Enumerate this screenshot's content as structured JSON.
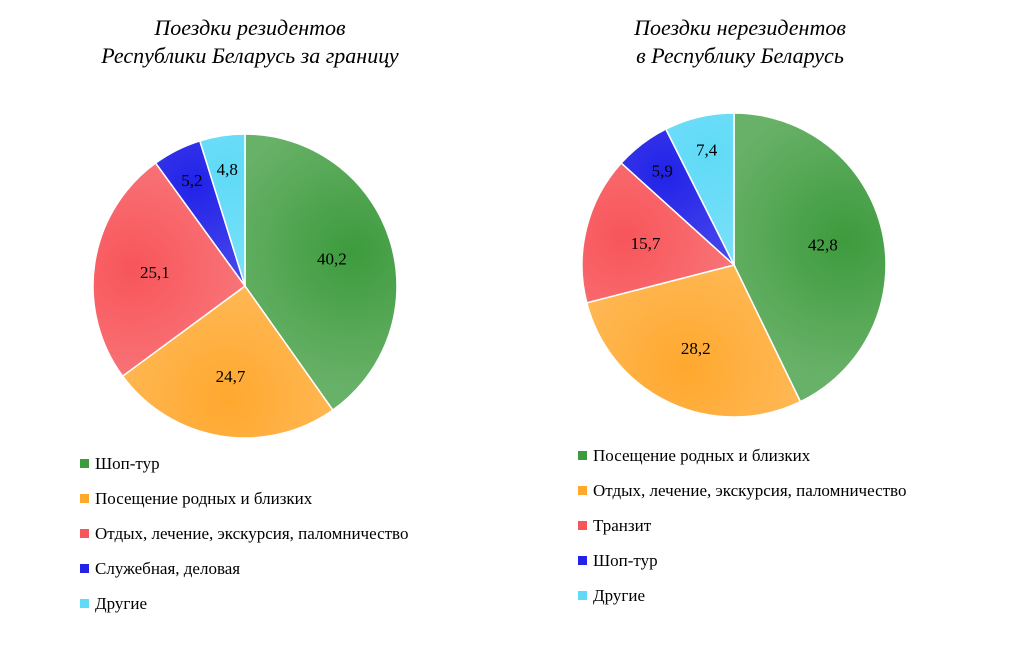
{
  "chart_data": [
    {
      "type": "pie",
      "title_lines": [
        "Поездки резидентов",
        "Республики Беларусь за границу"
      ],
      "slices": [
        {
          "label": "Шоп-тур",
          "value": 40.2,
          "value_label": "40,2",
          "color": "#3d9b3d"
        },
        {
          "label": "Посещение родных и близких",
          "value": 24.7,
          "value_label": "24,7",
          "color": "#ffa82e"
        },
        {
          "label": "Отдых, лечение, экскурсия, паломничество",
          "value": 25.1,
          "value_label": "25,1",
          "color": "#f7555a"
        },
        {
          "label": "Служебная, деловая",
          "value": 5.2,
          "value_label": "5,2",
          "color": "#2222e8"
        },
        {
          "label": "Другие",
          "value": 4.8,
          "value_label": "4,8",
          "color": "#5fdaf7"
        }
      ]
    },
    {
      "type": "pie",
      "title_lines": [
        "Поездки нерезидентов",
        "в Республику Беларусь"
      ],
      "slices": [
        {
          "label": "Посещение родных и близких",
          "value": 42.8,
          "value_label": "42,8",
          "color": "#3d9b3d"
        },
        {
          "label": "Отдых, лечение, экскурсия, паломничество",
          "value": 28.2,
          "value_label": "28,2",
          "color": "#ffa82e"
        },
        {
          "label": "Транзит",
          "value": 15.7,
          "value_label": "15,7",
          "color": "#f7555a"
        },
        {
          "label": "Шоп-тур",
          "value": 5.9,
          "value_label": "5,9",
          "color": "#2222e8"
        },
        {
          "label": "Другие",
          "value": 7.4,
          "value_label": "7,4",
          "color": "#5fdaf7"
        }
      ]
    }
  ]
}
